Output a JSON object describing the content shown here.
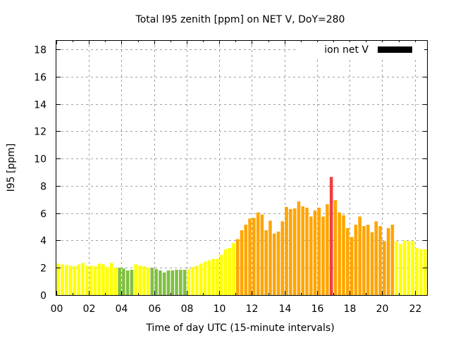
{
  "chart_data": {
    "type": "bar",
    "title": "Total I95 zenith [ppm] on NET V, DoY=280",
    "xlabel": "Time of day UTC (15-minute intervals)",
    "ylabel": "I95 [ppm]",
    "xlim": [
      0,
      22.75
    ],
    "ylim": [
      0,
      18.6
    ],
    "grid": true,
    "x_ticks": [
      "00",
      "02",
      "04",
      "06",
      "08",
      "10",
      "12",
      "14",
      "16",
      "18",
      "20",
      "22"
    ],
    "x_tick_values": [
      0,
      2,
      4,
      6,
      8,
      10,
      12,
      14,
      16,
      18,
      20,
      22
    ],
    "y_ticks": [
      "0",
      "2",
      "4",
      "6",
      "8",
      "10",
      "12",
      "14",
      "16",
      "18"
    ],
    "y_tick_values": [
      0,
      2,
      4,
      6,
      8,
      10,
      12,
      14,
      16,
      18
    ],
    "legend": {
      "label": "ion net V",
      "position": "top-right",
      "color": "#000000"
    },
    "bar_interval_hours": 0.25,
    "color_map": {
      "low": "#80c040",
      "normal": "#ffff00",
      "elevated": "#ffa500",
      "high": "#f04040"
    },
    "series": [
      {
        "name": "ion net V",
        "values": [
          2.3,
          2.25,
          2.2,
          2.15,
          2.1,
          2.25,
          2.35,
          2.15,
          2.15,
          2.1,
          2.3,
          2.25,
          2.05,
          2.35,
          2.0,
          2.0,
          1.95,
          1.8,
          1.85,
          2.25,
          2.15,
          2.1,
          2.0,
          2.0,
          1.9,
          1.8,
          1.65,
          1.8,
          1.8,
          1.85,
          1.85,
          1.85,
          1.9,
          2.05,
          2.15,
          2.3,
          2.45,
          2.55,
          2.65,
          2.65,
          2.95,
          3.35,
          3.45,
          3.8,
          4.1,
          4.75,
          5.15,
          5.6,
          5.65,
          6.05,
          5.9,
          4.75,
          5.45,
          4.5,
          4.65,
          5.4,
          6.45,
          6.3,
          6.35,
          6.85,
          6.5,
          6.4,
          5.75,
          6.2,
          6.4,
          5.75,
          6.65,
          8.65,
          6.95,
          6.05,
          5.85,
          4.9,
          4.25,
          5.15,
          5.75,
          5.05,
          5.15,
          4.6,
          5.4,
          5.05,
          3.95,
          4.9,
          5.15,
          3.95,
          3.75,
          4.0,
          3.95,
          3.95,
          3.45,
          3.35,
          3.35
        ],
        "levels": [
          "normal",
          "normal",
          "normal",
          "normal",
          "normal",
          "normal",
          "normal",
          "normal",
          "normal",
          "normal",
          "normal",
          "normal",
          "normal",
          "normal",
          "normal",
          "low",
          "low",
          "low",
          "low",
          "normal",
          "normal",
          "normal",
          "normal",
          "low",
          "low",
          "low",
          "low",
          "low",
          "low",
          "low",
          "low",
          "low",
          "normal",
          "normal",
          "normal",
          "normal",
          "normal",
          "normal",
          "normal",
          "normal",
          "normal",
          "normal",
          "normal",
          "normal",
          "elevated",
          "elevated",
          "elevated",
          "elevated",
          "elevated",
          "elevated",
          "elevated",
          "elevated",
          "elevated",
          "elevated",
          "elevated",
          "elevated",
          "elevated",
          "elevated",
          "elevated",
          "elevated",
          "elevated",
          "elevated",
          "elevated",
          "elevated",
          "elevated",
          "elevated",
          "elevated",
          "high",
          "elevated",
          "elevated",
          "elevated",
          "elevated",
          "elevated",
          "elevated",
          "elevated",
          "elevated",
          "elevated",
          "elevated",
          "elevated",
          "elevated",
          "elevated",
          "elevated",
          "elevated",
          "normal",
          "normal",
          "normal",
          "normal",
          "normal",
          "normal",
          "normal",
          "normal"
        ]
      }
    ]
  }
}
